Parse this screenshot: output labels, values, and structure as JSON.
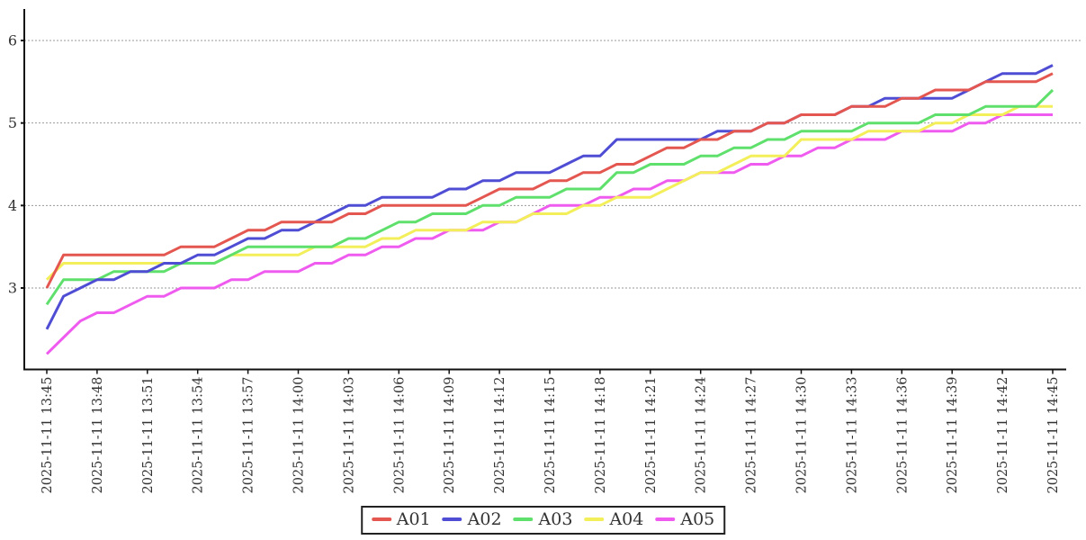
{
  "chart_data": {
    "type": "line",
    "title": "",
    "xlabel": "",
    "ylabel": "",
    "x_start": "2025-11-11 13:45",
    "x_end": "2025-11-11 14:45",
    "x_step_minutes": 1,
    "points_per_series": 61,
    "x_tick_labels": [
      "2025-11-11 13:45",
      "2025-11-11 13:48",
      "2025-11-11 13:51",
      "2025-11-11 13:54",
      "2025-11-11 13:57",
      "2025-11-11 14:00",
      "2025-11-11 14:03",
      "2025-11-11 14:06",
      "2025-11-11 14:09",
      "2025-11-11 14:12",
      "2025-11-11 14:15",
      "2025-11-11 14:18",
      "2025-11-11 14:21",
      "2025-11-11 14:24",
      "2025-11-11 14:27",
      "2025-11-11 14:30",
      "2025-11-11 14:33",
      "2025-11-11 14:36",
      "2025-11-11 14:39",
      "2025-11-11 14:42",
      "2025-11-11 14:45"
    ],
    "y_ticks": [
      3,
      4,
      5,
      6
    ],
    "ylim": [
      2.0,
      6.4
    ],
    "grid": "horizontal-dashed",
    "grid_color": "#999999",
    "axis_color": "#111111",
    "legend_position": "bottom-center",
    "series": [
      {
        "name": "A01",
        "color": "#e45751",
        "values": [
          3.0,
          3.4,
          3.4,
          3.4,
          3.4,
          3.4,
          3.4,
          3.4,
          3.5,
          3.5,
          3.5,
          3.6,
          3.7,
          3.7,
          3.8,
          3.8,
          3.8,
          3.8,
          3.9,
          3.9,
          4.0,
          4.0,
          4.0,
          4.0,
          4.0,
          4.0,
          4.1,
          4.2,
          4.2,
          4.2,
          4.3,
          4.3,
          4.4,
          4.4,
          4.5,
          4.5,
          4.6,
          4.7,
          4.7,
          4.8,
          4.8,
          4.9,
          4.9,
          5.0,
          5.0,
          5.1,
          5.1,
          5.1,
          5.2,
          5.2,
          5.2,
          5.3,
          5.3,
          5.4,
          5.4,
          5.4,
          5.5,
          5.5,
          5.5,
          5.5,
          5.6
        ]
      },
      {
        "name": "A02",
        "color": "#4f4dd4",
        "values": [
          2.5,
          2.9,
          3.0,
          3.1,
          3.1,
          3.2,
          3.2,
          3.3,
          3.3,
          3.4,
          3.4,
          3.5,
          3.6,
          3.6,
          3.7,
          3.7,
          3.8,
          3.9,
          4.0,
          4.0,
          4.1,
          4.1,
          4.1,
          4.1,
          4.2,
          4.2,
          4.3,
          4.3,
          4.4,
          4.4,
          4.4,
          4.5,
          4.6,
          4.6,
          4.8,
          4.8,
          4.8,
          4.8,
          4.8,
          4.8,
          4.9,
          4.9,
          4.9,
          5.0,
          5.0,
          5.1,
          5.1,
          5.1,
          5.2,
          5.2,
          5.3,
          5.3,
          5.3,
          5.3,
          5.3,
          5.4,
          5.5,
          5.6,
          5.6,
          5.6,
          5.7
        ]
      },
      {
        "name": "A03",
        "color": "#5fe06c",
        "values": [
          2.8,
          3.1,
          3.1,
          3.1,
          3.2,
          3.2,
          3.2,
          3.2,
          3.3,
          3.3,
          3.3,
          3.4,
          3.5,
          3.5,
          3.5,
          3.5,
          3.5,
          3.5,
          3.6,
          3.6,
          3.7,
          3.8,
          3.8,
          3.9,
          3.9,
          3.9,
          4.0,
          4.0,
          4.1,
          4.1,
          4.1,
          4.2,
          4.2,
          4.2,
          4.4,
          4.4,
          4.5,
          4.5,
          4.5,
          4.6,
          4.6,
          4.7,
          4.7,
          4.8,
          4.8,
          4.9,
          4.9,
          4.9,
          4.9,
          5.0,
          5.0,
          5.0,
          5.0,
          5.1,
          5.1,
          5.1,
          5.2,
          5.2,
          5.2,
          5.2,
          5.4
        ]
      },
      {
        "name": "A04",
        "color": "#f3ef5a",
        "values": [
          3.1,
          3.3,
          3.3,
          3.3,
          3.3,
          3.3,
          3.3,
          3.3,
          3.3,
          3.3,
          3.3,
          3.4,
          3.4,
          3.4,
          3.4,
          3.4,
          3.5,
          3.5,
          3.5,
          3.5,
          3.6,
          3.6,
          3.7,
          3.7,
          3.7,
          3.7,
          3.8,
          3.8,
          3.8,
          3.9,
          3.9,
          3.9,
          4.0,
          4.0,
          4.1,
          4.1,
          4.1,
          4.2,
          4.3,
          4.4,
          4.4,
          4.5,
          4.6,
          4.6,
          4.6,
          4.8,
          4.8,
          4.8,
          4.8,
          4.9,
          4.9,
          4.9,
          4.9,
          5.0,
          5.0,
          5.1,
          5.1,
          5.1,
          5.2,
          5.2,
          5.2
        ]
      },
      {
        "name": "A05",
        "color": "#ef5bef",
        "values": [
          2.2,
          2.4,
          2.6,
          2.7,
          2.7,
          2.8,
          2.9,
          2.9,
          3.0,
          3.0,
          3.0,
          3.1,
          3.1,
          3.2,
          3.2,
          3.2,
          3.3,
          3.3,
          3.4,
          3.4,
          3.5,
          3.5,
          3.6,
          3.6,
          3.7,
          3.7,
          3.7,
          3.8,
          3.8,
          3.9,
          4.0,
          4.0,
          4.0,
          4.1,
          4.1,
          4.2,
          4.2,
          4.3,
          4.3,
          4.4,
          4.4,
          4.4,
          4.5,
          4.5,
          4.6,
          4.6,
          4.7,
          4.7,
          4.8,
          4.8,
          4.8,
          4.9,
          4.9,
          4.9,
          4.9,
          5.0,
          5.0,
          5.1,
          5.1,
          5.1,
          5.1
        ]
      }
    ]
  }
}
